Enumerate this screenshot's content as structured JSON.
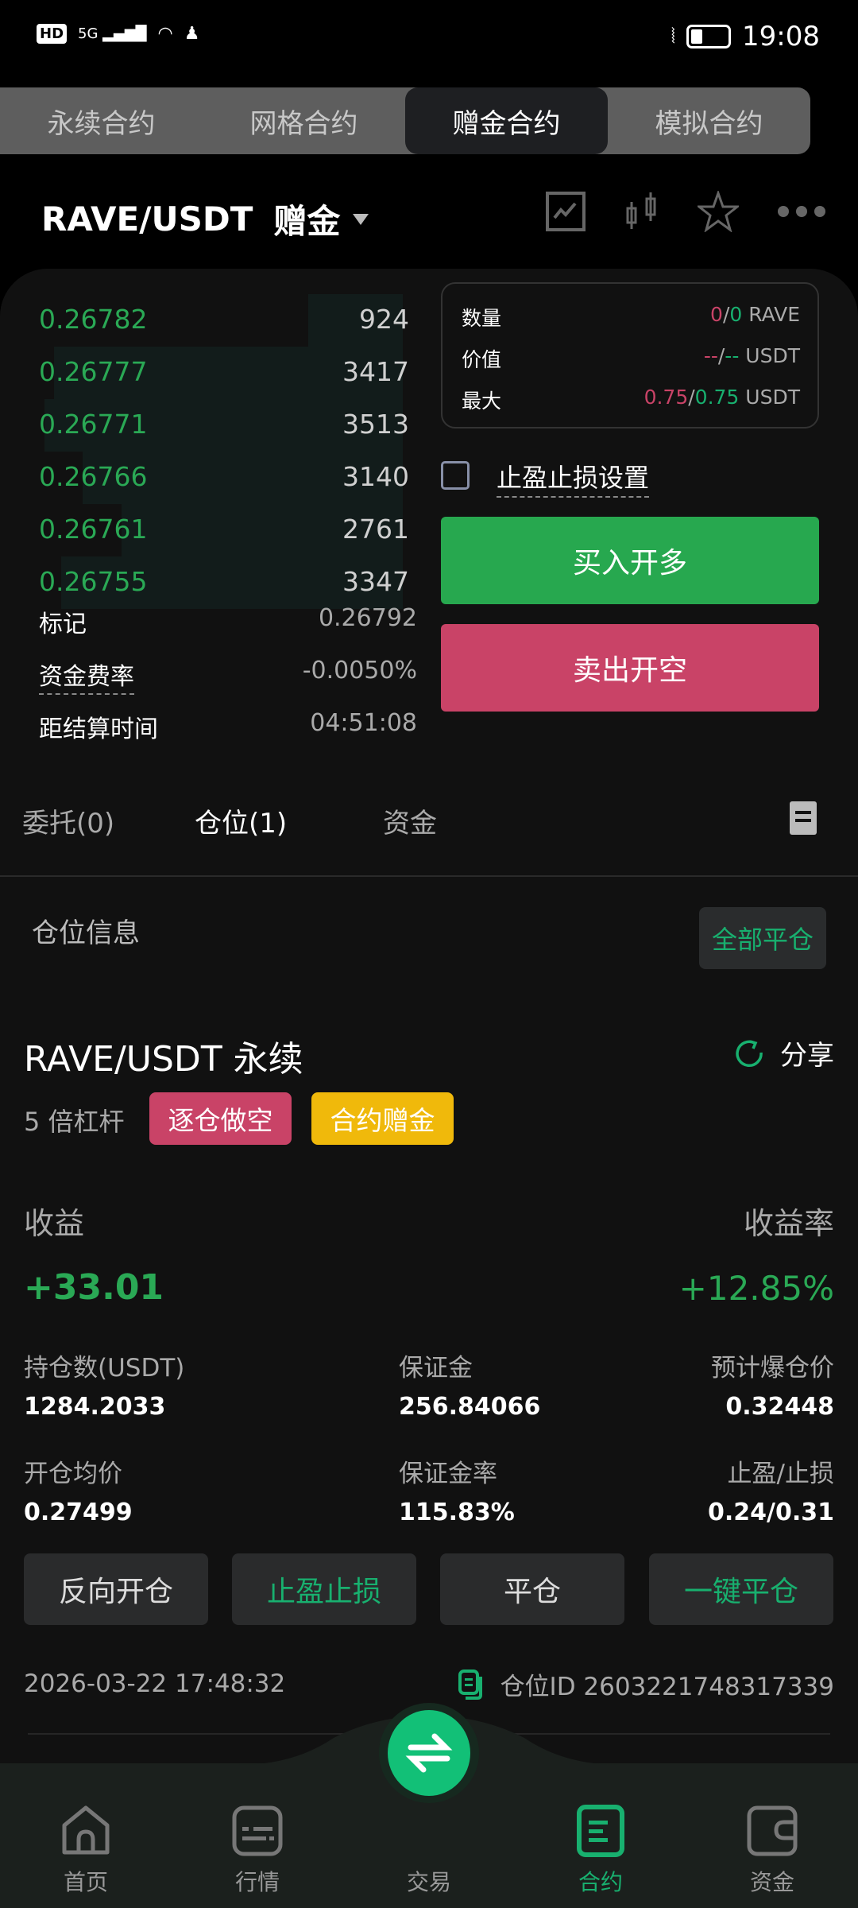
{
  "status_bar": {
    "network": "5G",
    "hd": "HD",
    "time": "19:08"
  },
  "mode_tabs": [
    {
      "label": "永续合约"
    },
    {
      "label": "网格合约"
    },
    {
      "label": "赠金合约",
      "active": true
    },
    {
      "label": "模拟合约"
    }
  ],
  "header": {
    "pair": "RAVE/USDT",
    "mode": "赠金",
    "icons": [
      "line-chart-icon",
      "candlestick-icon",
      "star-icon",
      "more-icon"
    ]
  },
  "order_book": {
    "bids": [
      {
        "price": "0.26782",
        "qty": "924"
      },
      {
        "price": "0.26777",
        "qty": "3417"
      },
      {
        "price": "0.26771",
        "qty": "3513"
      },
      {
        "price": "0.26766",
        "qty": "3140"
      },
      {
        "price": "0.26761",
        "qty": "2761"
      },
      {
        "price": "0.26755",
        "qty": "3347"
      }
    ]
  },
  "market_info": [
    {
      "label": "标记",
      "value": "0.26792"
    },
    {
      "label": "资金费率",
      "value": "-0.0050%"
    },
    {
      "label": "距结算时间",
      "value": "04:51:08"
    }
  ],
  "order_box": {
    "qty": {
      "label": "数量",
      "red": "0",
      "green": "0",
      "unit": "RAVE"
    },
    "value": {
      "label": "价值",
      "red": "--",
      "green": "--",
      "unit": "USDT"
    },
    "max": {
      "label": "最大",
      "red": "0.75",
      "green": "0.75",
      "unit": "USDT"
    }
  },
  "tpsl_checkbox": {
    "label": "止盈止损设置",
    "checked": false
  },
  "buy_button": "买入开多",
  "sell_button": "卖出开空",
  "colors": {
    "buy": "#27a84f",
    "sell": "#c94367",
    "accent": "#18b06f",
    "bonus": "#f0b90b"
  },
  "position_tabs": [
    {
      "label": "委托(0)"
    },
    {
      "label": "仓位(1)",
      "active": true
    },
    {
      "label": "资金"
    }
  ],
  "position_section": {
    "title": "仓位信息",
    "close_all": "全部平仓"
  },
  "position": {
    "symbol": "RAVE/USDT 永续",
    "share": "分享",
    "leverage": "5 倍杠杆",
    "tags": [
      "逐仓做空",
      "合约赠金"
    ],
    "pnl_label": "收益",
    "pnl": "+33.01",
    "roe_label": "收益率",
    "roe": "+12.85%",
    "stats": [
      {
        "label": "持仓数(USDT)",
        "value": "1284.2033"
      },
      {
        "label": "保证金",
        "value": "256.84066"
      },
      {
        "label": "预计爆仓价",
        "value": "0.32448"
      },
      {
        "label": "开仓均价",
        "value": "0.27499"
      },
      {
        "label": "保证金率",
        "value": "115.83%"
      },
      {
        "label": "止盈/止损",
        "value": "0.24/0.31"
      }
    ],
    "actions": [
      "反向开仓",
      "止盈止损",
      "平仓",
      "一键平仓"
    ],
    "time": "2026-03-22 17:48:32",
    "id_label": "仓位ID 2603221748317339"
  },
  "bottom_nav": [
    {
      "label": "首页"
    },
    {
      "label": "行情"
    },
    {
      "label": "交易"
    },
    {
      "label": "合约",
      "active": true
    },
    {
      "label": "资金"
    }
  ]
}
